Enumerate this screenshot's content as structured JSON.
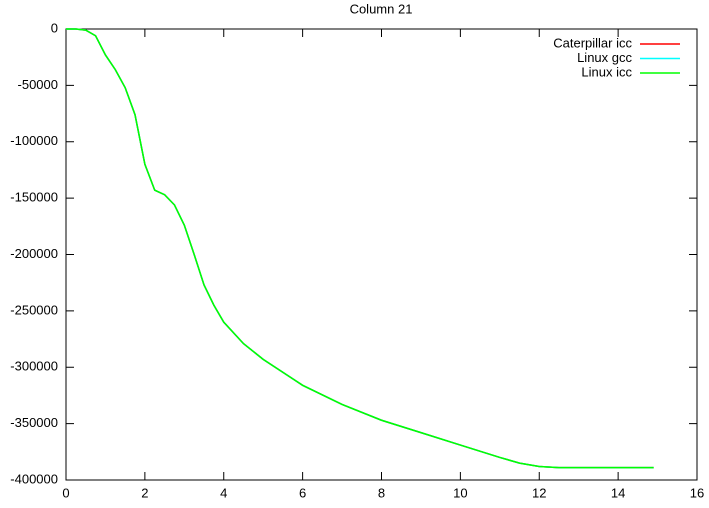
{
  "chart_data": {
    "type": "line",
    "title": "Column 21",
    "x": [
      0,
      0.25,
      0.5,
      0.75,
      1,
      1.25,
      1.5,
      1.75,
      2,
      2.25,
      2.5,
      2.75,
      3,
      3.25,
      3.5,
      3.75,
      4,
      4.5,
      5,
      6,
      7,
      8,
      9,
      10,
      11,
      11.5,
      12,
      12.5,
      13,
      14,
      14.9
    ],
    "series": [
      {
        "name": "Caterpillar icc",
        "color": "#ff0000",
        "values": [
          0,
          0,
          -1000,
          -6000,
          -23000,
          -36000,
          -52000,
          -76000,
          -120000,
          -143000,
          -147000,
          -156000,
          -174000,
          -200000,
          -227000,
          -245000,
          -260000,
          -279000,
          -293000,
          -316000,
          -333000,
          -347000,
          -358000,
          -369000,
          -380000,
          -385000,
          -388000,
          -389000,
          -389000,
          -389000,
          -389000
        ]
      },
      {
        "name": "Linux gcc",
        "color": "#00ffff",
        "values": [
          0,
          0,
          -1000,
          -6000,
          -23000,
          -36000,
          -52000,
          -76000,
          -120000,
          -143000,
          -147000,
          -156000,
          -174000,
          -200000,
          -227000,
          -245000,
          -260000,
          -279000,
          -293000,
          -316000,
          -333000,
          -347000,
          -358000,
          -369000,
          -380000,
          -385000,
          -388000,
          -389000,
          -389000,
          -389000,
          -389000
        ]
      },
      {
        "name": "Linux icc",
        "color": "#00ff00",
        "values": [
          0,
          0,
          -1000,
          -6000,
          -23000,
          -36000,
          -52000,
          -76000,
          -120000,
          -143000,
          -147000,
          -156000,
          -174000,
          -200000,
          -227000,
          -245000,
          -260000,
          -279000,
          -293000,
          -316000,
          -333000,
          -347000,
          -358000,
          -369000,
          -380000,
          -385000,
          -388000,
          -389000,
          -389000,
          -389000,
          -389000
        ]
      }
    ],
    "xlim": [
      0,
      16
    ],
    "xticks": [
      0,
      2,
      4,
      6,
      8,
      10,
      12,
      14,
      16
    ],
    "ylim": [
      -400000,
      0
    ],
    "yticks": [
      0,
      -50000,
      -100000,
      -150000,
      -200000,
      -250000,
      -300000,
      -350000,
      -400000
    ],
    "grid": false,
    "legend": "top right"
  }
}
